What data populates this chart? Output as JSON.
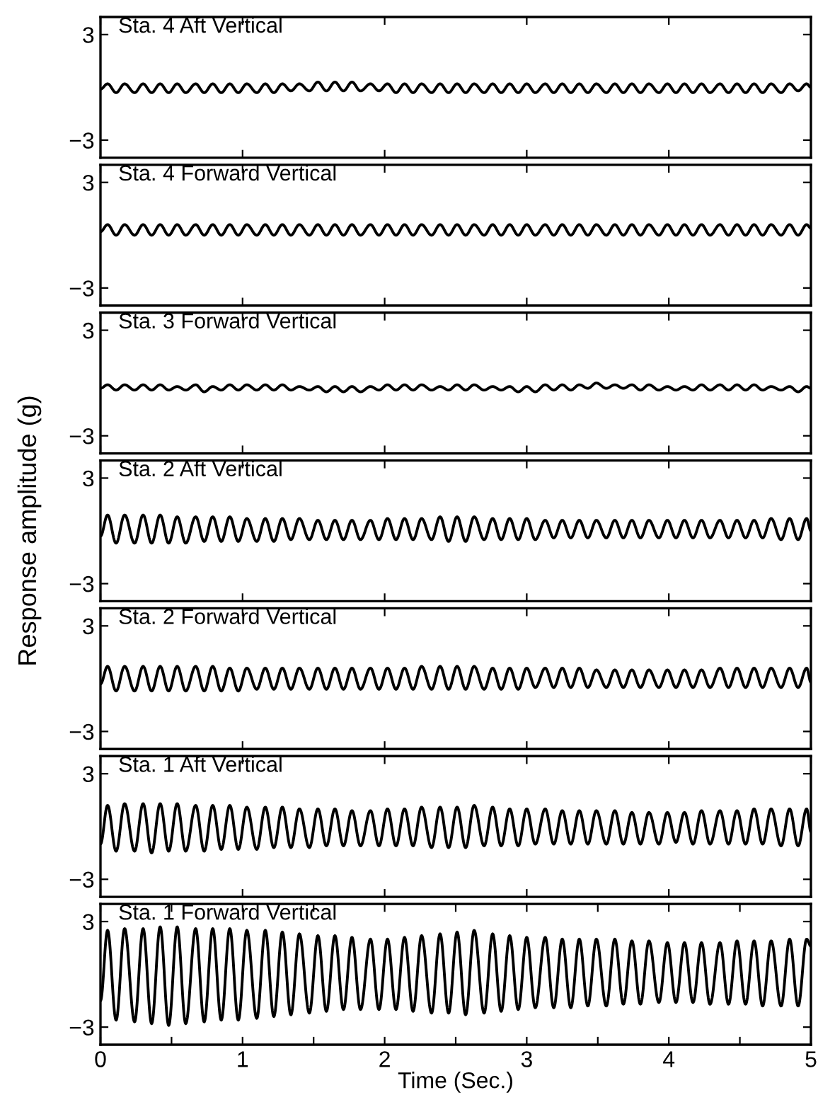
{
  "chart_data": [
    {
      "type": "line",
      "title": "Sta. 4 Aft Vertical",
      "xlim": [
        0,
        5
      ],
      "ylim": [
        -4,
        4
      ],
      "xticks": [
        0,
        1,
        2,
        3,
        4,
        5
      ],
      "yticks": [
        3,
        -3
      ],
      "tick_labels": "y",
      "x": [
        0,
        0.05,
        0.11,
        0.17,
        0.24,
        0.3,
        0.36,
        0.42,
        0.48,
        0.54,
        0.6,
        0.67,
        0.73,
        0.79,
        0.85,
        0.91,
        0.97,
        1.03,
        1.1,
        1.16,
        1.22,
        1.28,
        1.34,
        1.4,
        1.47,
        1.53,
        1.59,
        1.65,
        1.71,
        1.77,
        1.83,
        1.9,
        1.96,
        2.02,
        2.08,
        2.14,
        2.2,
        2.26,
        2.33,
        2.39,
        2.45,
        2.51,
        2.57,
        2.63,
        2.7,
        2.76,
        2.82,
        2.88,
        2.94,
        3.0,
        3.06,
        3.13,
        3.19,
        3.25,
        3.31,
        3.37,
        3.43,
        3.49,
        3.56,
        3.62,
        3.68,
        3.74,
        3.8,
        3.86,
        3.93,
        3.99,
        4.05,
        4.11,
        4.17,
        4.23,
        4.29,
        4.36,
        4.42,
        4.48,
        4.54,
        4.6,
        4.66,
        4.72,
        4.79,
        4.85,
        4.91,
        4.97,
        5
      ],
      "series": [
        {
          "color": "#000000",
          "values": [
            -0.1,
            0.2,
            -0.3,
            0.2,
            -0.3,
            0.2,
            -0.3,
            0.2,
            -0.3,
            0.2,
            -0.3,
            0.2,
            -0.3,
            0.2,
            -0.3,
            0.2,
            -0.3,
            0.2,
            -0.3,
            0.2,
            -0.3,
            0.2,
            -0.2,
            0.2,
            -0.2,
            0.3,
            -0.2,
            0.3,
            -0.2,
            0.3,
            -0.2,
            0.2,
            -0.2,
            0.2,
            -0.3,
            0.2,
            -0.3,
            0.2,
            -0.3,
            0.2,
            -0.3,
            0.2,
            -0.3,
            0.2,
            -0.3,
            0.2,
            -0.3,
            0.2,
            -0.3,
            0.2,
            -0.3,
            0.2,
            -0.3,
            0.2,
            -0.3,
            0.2,
            -0.3,
            0.2,
            -0.3,
            0.2,
            -0.3,
            0.2,
            -0.3,
            0.2,
            -0.3,
            0.2,
            -0.3,
            0.2,
            -0.3,
            0.2,
            -0.3,
            0.2,
            -0.3,
            0.2,
            -0.3,
            0.2,
            -0.3,
            0.2,
            -0.3,
            0.2,
            -0.2,
            0.2,
            0.0
          ]
        }
      ]
    },
    {
      "type": "line",
      "title": "Sta. 4 Forward Vertical",
      "xlim": [
        0,
        5
      ],
      "ylim": [
        -4,
        4
      ],
      "xticks": [
        0,
        1,
        2,
        3,
        4,
        5
      ],
      "yticks": [
        3,
        -3
      ],
      "tick_labels": "y",
      "x": [
        0,
        0.05,
        0.11,
        0.17,
        0.24,
        0.3,
        0.36,
        0.42,
        0.48,
        0.54,
        0.6,
        0.67,
        0.73,
        0.79,
        0.85,
        0.91,
        0.97,
        1.03,
        1.1,
        1.16,
        1.22,
        1.28,
        1.34,
        1.4,
        1.47,
        1.53,
        1.59,
        1.65,
        1.71,
        1.77,
        1.83,
        1.9,
        1.96,
        2.02,
        2.08,
        2.14,
        2.2,
        2.26,
        2.33,
        2.39,
        2.45,
        2.51,
        2.57,
        2.63,
        2.7,
        2.76,
        2.82,
        2.88,
        2.94,
        3.0,
        3.06,
        3.13,
        3.19,
        3.25,
        3.31,
        3.37,
        3.43,
        3.49,
        3.56,
        3.62,
        3.68,
        3.74,
        3.8,
        3.86,
        3.93,
        3.99,
        4.05,
        4.11,
        4.17,
        4.23,
        4.29,
        4.36,
        4.42,
        4.48,
        4.54,
        4.6,
        4.66,
        4.72,
        4.79,
        4.85,
        4.91,
        4.97,
        5
      ],
      "series": [
        {
          "color": "#000000",
          "values": [
            0.2,
            0.6,
            0.0,
            0.6,
            0.0,
            0.6,
            0.0,
            0.6,
            0.0,
            0.6,
            0.0,
            0.6,
            0.0,
            0.6,
            0.0,
            0.6,
            0.0,
            0.6,
            0.0,
            0.6,
            0.0,
            0.6,
            0.0,
            0.6,
            0.0,
            0.6,
            0.0,
            0.6,
            0.0,
            0.6,
            0.0,
            0.6,
            0.0,
            0.6,
            0.0,
            0.6,
            0.0,
            0.6,
            0.0,
            0.6,
            0.0,
            0.6,
            0.0,
            0.6,
            0.0,
            0.6,
            0.0,
            0.6,
            0.0,
            0.6,
            0.0,
            0.6,
            0.0,
            0.6,
            0.0,
            0.6,
            0.0,
            0.6,
            0.0,
            0.6,
            0.0,
            0.6,
            0.0,
            0.6,
            0.0,
            0.6,
            0.0,
            0.6,
            0.0,
            0.6,
            0.0,
            0.6,
            0.0,
            0.6,
            0.0,
            0.6,
            0.0,
            0.6,
            0.0,
            0.6,
            0.0,
            0.6,
            0.4
          ]
        }
      ]
    },
    {
      "type": "line",
      "title": "Sta. 3 Forward Vertical",
      "xlim": [
        0,
        5
      ],
      "ylim": [
        -4,
        4
      ],
      "xticks": [
        0,
        1,
        2,
        3,
        4,
        5
      ],
      "yticks": [
        3,
        -3
      ],
      "tick_labels": "y",
      "x": [
        0,
        0.05,
        0.11,
        0.17,
        0.24,
        0.3,
        0.36,
        0.42,
        0.48,
        0.54,
        0.6,
        0.67,
        0.73,
        0.79,
        0.85,
        0.91,
        0.97,
        1.03,
        1.1,
        1.16,
        1.22,
        1.28,
        1.34,
        1.4,
        1.47,
        1.53,
        1.59,
        1.65,
        1.71,
        1.77,
        1.83,
        1.9,
        1.96,
        2.02,
        2.08,
        2.14,
        2.2,
        2.26,
        2.33,
        2.39,
        2.45,
        2.51,
        2.57,
        2.63,
        2.7,
        2.76,
        2.82,
        2.88,
        2.94,
        3.0,
        3.06,
        3.13,
        3.19,
        3.25,
        3.31,
        3.37,
        3.43,
        3.49,
        3.56,
        3.62,
        3.68,
        3.74,
        3.8,
        3.86,
        3.93,
        3.99,
        4.05,
        4.11,
        4.17,
        4.23,
        4.29,
        4.36,
        4.42,
        4.48,
        4.54,
        4.6,
        4.66,
        4.72,
        4.79,
        4.85,
        4.91,
        4.97,
        5
      ],
      "series": [
        {
          "color": "#000000",
          "values": [
            -0.3,
            -0.1,
            -0.4,
            -0.1,
            -0.4,
            -0.1,
            -0.4,
            -0.1,
            -0.4,
            -0.2,
            -0.4,
            -0.1,
            -0.5,
            -0.2,
            -0.4,
            -0.1,
            -0.4,
            -0.1,
            -0.4,
            -0.1,
            -0.4,
            -0.1,
            -0.4,
            -0.2,
            -0.4,
            -0.2,
            -0.5,
            -0.2,
            -0.5,
            -0.2,
            -0.5,
            -0.2,
            -0.4,
            -0.1,
            -0.4,
            -0.1,
            -0.4,
            -0.1,
            -0.4,
            -0.2,
            -0.4,
            -0.1,
            -0.4,
            -0.1,
            -0.4,
            -0.2,
            -0.4,
            -0.2,
            -0.5,
            -0.2,
            -0.5,
            -0.1,
            -0.4,
            -0.1,
            -0.4,
            -0.1,
            -0.3,
            0.0,
            -0.3,
            -0.1,
            -0.3,
            -0.1,
            -0.4,
            -0.1,
            -0.4,
            -0.2,
            -0.4,
            -0.2,
            -0.4,
            -0.1,
            -0.4,
            -0.1,
            -0.4,
            -0.1,
            -0.4,
            -0.1,
            -0.4,
            -0.2,
            -0.4,
            -0.2,
            -0.5,
            -0.2,
            -0.3
          ]
        }
      ]
    },
    {
      "type": "line",
      "title": "Sta. 2 Aft Vertical",
      "ylabel": "Response amplitude (g)",
      "xlim": [
        0,
        5
      ],
      "ylim": [
        -4,
        4
      ],
      "xticks": [
        0,
        1,
        2,
        3,
        4,
        5
      ],
      "yticks": [
        3,
        -3
      ],
      "tick_labels": "y",
      "x": [
        0,
        0.05,
        0.11,
        0.17,
        0.24,
        0.3,
        0.36,
        0.42,
        0.48,
        0.54,
        0.6,
        0.67,
        0.73,
        0.79,
        0.85,
        0.91,
        0.97,
        1.03,
        1.1,
        1.16,
        1.22,
        1.28,
        1.34,
        1.4,
        1.47,
        1.53,
        1.59,
        1.65,
        1.71,
        1.77,
        1.83,
        1.9,
        1.96,
        2.02,
        2.08,
        2.14,
        2.2,
        2.26,
        2.33,
        2.39,
        2.45,
        2.51,
        2.57,
        2.63,
        2.7,
        2.76,
        2.82,
        2.88,
        2.94,
        3.0,
        3.06,
        3.13,
        3.19,
        3.25,
        3.31,
        3.37,
        3.43,
        3.49,
        3.56,
        3.62,
        3.68,
        3.74,
        3.8,
        3.86,
        3.93,
        3.99,
        4.05,
        4.11,
        4.17,
        4.23,
        4.29,
        4.36,
        4.42,
        4.48,
        4.54,
        4.6,
        4.66,
        4.72,
        4.79,
        4.85,
        4.91,
        4.97,
        5
      ],
      "series": [
        {
          "color": "#000000",
          "values": [
            -0.3,
            0.9,
            -0.7,
            0.9,
            -0.7,
            0.9,
            -0.7,
            0.9,
            -0.7,
            0.8,
            -0.7,
            0.8,
            -0.6,
            0.8,
            -0.6,
            0.8,
            -0.6,
            0.7,
            -0.6,
            0.7,
            -0.6,
            0.7,
            -0.5,
            0.7,
            -0.5,
            0.6,
            -0.5,
            0.6,
            -0.5,
            0.6,
            -0.5,
            0.6,
            -0.5,
            0.7,
            -0.5,
            0.7,
            -0.5,
            0.7,
            -0.5,
            0.8,
            -0.6,
            0.8,
            -0.6,
            0.8,
            -0.5,
            0.7,
            -0.5,
            0.7,
            -0.5,
            0.7,
            -0.5,
            0.6,
            -0.4,
            0.6,
            -0.4,
            0.6,
            -0.4,
            0.6,
            -0.4,
            0.6,
            -0.4,
            0.6,
            -0.4,
            0.6,
            -0.4,
            0.6,
            -0.4,
            0.6,
            -0.4,
            0.6,
            -0.4,
            0.6,
            -0.4,
            0.6,
            -0.4,
            0.6,
            -0.4,
            0.7,
            -0.5,
            0.7,
            -0.5,
            0.7,
            0.0
          ]
        }
      ]
    },
    {
      "type": "line",
      "title": "Sta. 2 Forward Vertical",
      "xlim": [
        0,
        5
      ],
      "ylim": [
        -4,
        4
      ],
      "xticks": [
        0,
        1,
        2,
        3,
        4,
        5
      ],
      "yticks": [
        3,
        -3
      ],
      "tick_labels": "y",
      "x": [
        0,
        0.05,
        0.11,
        0.17,
        0.24,
        0.3,
        0.36,
        0.42,
        0.48,
        0.54,
        0.6,
        0.67,
        0.73,
        0.79,
        0.85,
        0.91,
        0.97,
        1.03,
        1.1,
        1.16,
        1.22,
        1.28,
        1.34,
        1.4,
        1.47,
        1.53,
        1.59,
        1.65,
        1.71,
        1.77,
        1.83,
        1.9,
        1.96,
        2.02,
        2.08,
        2.14,
        2.2,
        2.26,
        2.33,
        2.39,
        2.45,
        2.51,
        2.57,
        2.63,
        2.7,
        2.76,
        2.82,
        2.88,
        2.94,
        3.0,
        3.06,
        3.13,
        3.19,
        3.25,
        3.31,
        3.37,
        3.43,
        3.49,
        3.56,
        3.62,
        3.68,
        3.74,
        3.8,
        3.86,
        3.93,
        3.99,
        4.05,
        4.11,
        4.17,
        4.23,
        4.29,
        4.36,
        4.42,
        4.48,
        4.54,
        4.6,
        4.66,
        4.72,
        4.79,
        4.85,
        4.91,
        4.97,
        5
      ],
      "series": [
        {
          "color": "#000000",
          "values": [
            -0.3,
            0.7,
            -0.7,
            0.7,
            -0.7,
            0.7,
            -0.7,
            0.7,
            -0.7,
            0.7,
            -0.7,
            0.7,
            -0.7,
            0.7,
            -0.7,
            0.6,
            -0.7,
            0.6,
            -0.6,
            0.6,
            -0.6,
            0.6,
            -0.6,
            0.6,
            -0.6,
            0.6,
            -0.6,
            0.6,
            -0.6,
            0.6,
            -0.6,
            0.6,
            -0.6,
            0.6,
            -0.6,
            0.6,
            -0.6,
            0.7,
            -0.6,
            0.7,
            -0.6,
            0.7,
            -0.6,
            0.7,
            -0.6,
            0.6,
            -0.6,
            0.6,
            -0.6,
            0.6,
            -0.5,
            0.6,
            -0.5,
            0.6,
            -0.5,
            0.6,
            -0.5,
            0.5,
            -0.5,
            0.5,
            -0.5,
            0.5,
            -0.5,
            0.5,
            -0.5,
            0.5,
            -0.5,
            0.5,
            -0.5,
            0.5,
            -0.5,
            0.6,
            -0.5,
            0.6,
            -0.5,
            0.6,
            -0.5,
            0.6,
            -0.5,
            0.6,
            -0.5,
            0.6,
            -0.2
          ]
        }
      ]
    },
    {
      "type": "line",
      "title": "Sta. 1 Aft Vertical",
      "xlim": [
        0,
        5
      ],
      "ylim": [
        -4,
        4
      ],
      "xticks": [
        0,
        1,
        2,
        3,
        4,
        5
      ],
      "yticks": [
        3,
        -3
      ],
      "tick_labels": "y",
      "x": [
        0,
        0.05,
        0.11,
        0.17,
        0.24,
        0.3,
        0.36,
        0.42,
        0.48,
        0.54,
        0.6,
        0.67,
        0.73,
        0.79,
        0.85,
        0.91,
        0.97,
        1.03,
        1.1,
        1.16,
        1.22,
        1.28,
        1.34,
        1.4,
        1.47,
        1.53,
        1.59,
        1.65,
        1.71,
        1.77,
        1.83,
        1.9,
        1.96,
        2.02,
        2.08,
        2.14,
        2.2,
        2.26,
        2.33,
        2.39,
        2.45,
        2.51,
        2.57,
        2.63,
        2.7,
        2.76,
        2.82,
        2.88,
        2.94,
        3.0,
        3.06,
        3.13,
        3.19,
        3.25,
        3.31,
        3.37,
        3.43,
        3.49,
        3.56,
        3.62,
        3.68,
        3.74,
        3.8,
        3.86,
        3.93,
        3.99,
        4.05,
        4.11,
        4.17,
        4.23,
        4.29,
        4.36,
        4.42,
        4.48,
        4.54,
        4.6,
        4.66,
        4.72,
        4.79,
        4.85,
        4.91,
        4.97,
        5
      ],
      "series": [
        {
          "color": "#000000",
          "values": [
            -1.0,
            1.2,
            -1.4,
            1.3,
            -1.4,
            1.3,
            -1.5,
            1.3,
            -1.4,
            1.3,
            -1.4,
            1.2,
            -1.4,
            1.2,
            -1.3,
            1.2,
            -1.3,
            1.1,
            -1.3,
            1.1,
            -1.2,
            1.1,
            -1.2,
            1.0,
            -1.2,
            1.0,
            -1.1,
            1.0,
            -1.1,
            0.9,
            -1.1,
            0.9,
            -1.1,
            1.0,
            -1.1,
            1.0,
            -1.1,
            1.1,
            -1.2,
            1.1,
            -1.2,
            1.1,
            -1.2,
            1.2,
            -1.1,
            1.1,
            -1.1,
            1.0,
            -1.1,
            1.0,
            -1.0,
            1.0,
            -1.0,
            0.9,
            -1.0,
            0.9,
            -1.0,
            0.9,
            -1.0,
            0.9,
            -1.0,
            0.8,
            -1.0,
            0.8,
            -1.0,
            0.8,
            -0.9,
            0.8,
            -1.0,
            0.9,
            -1.0,
            0.9,
            -1.0,
            0.9,
            -1.0,
            1.0,
            -1.0,
            1.0,
            -1.1,
            1.0,
            -1.1,
            1.0,
            -0.3
          ]
        }
      ]
    },
    {
      "type": "line",
      "title": "Sta. 1 Forward Vertical",
      "xlabel": "Time (Sec.)",
      "xlim": [
        0,
        5
      ],
      "ylim": [
        -4,
        4
      ],
      "xticks": [
        0,
        {
          "value": 0.5,
          "label": null
        },
        1,
        {
          "value": 1.5,
          "label": null
        },
        2,
        {
          "value": 2.5,
          "label": null
        },
        3,
        {
          "value": 3.5,
          "label": null
        },
        4,
        {
          "value": 4.5,
          "label": null
        },
        5
      ],
      "yticks": [
        3,
        -3
      ],
      "x": [
        0,
        0.05,
        0.11,
        0.17,
        0.24,
        0.3,
        0.36,
        0.42,
        0.48,
        0.54,
        0.6,
        0.67,
        0.73,
        0.79,
        0.85,
        0.91,
        0.97,
        1.03,
        1.1,
        1.16,
        1.22,
        1.28,
        1.34,
        1.4,
        1.47,
        1.53,
        1.59,
        1.65,
        1.71,
        1.77,
        1.83,
        1.9,
        1.96,
        2.02,
        2.08,
        2.14,
        2.2,
        2.26,
        2.33,
        2.39,
        2.45,
        2.51,
        2.57,
        2.63,
        2.7,
        2.76,
        2.82,
        2.88,
        2.94,
        3.0,
        3.06,
        3.13,
        3.19,
        3.25,
        3.31,
        3.37,
        3.43,
        3.49,
        3.56,
        3.62,
        3.68,
        3.74,
        3.8,
        3.86,
        3.93,
        3.99,
        4.05,
        4.11,
        4.17,
        4.23,
        4.29,
        4.36,
        4.42,
        4.48,
        4.54,
        4.6,
        4.66,
        4.72,
        4.79,
        4.85,
        4.91,
        4.97,
        5
      ],
      "series": [
        {
          "color": "#000000",
          "values": [
            -1.5,
            2.5,
            -2.6,
            2.6,
            -2.7,
            2.6,
            -2.8,
            2.7,
            -2.9,
            2.7,
            -2.8,
            2.6,
            -2.7,
            2.6,
            -2.6,
            2.6,
            -2.6,
            2.5,
            -2.5,
            2.5,
            -2.4,
            2.4,
            -2.3,
            2.3,
            -2.2,
            2.2,
            -2.1,
            2.2,
            -2.0,
            2.1,
            -2.0,
            2.0,
            -2.0,
            2.0,
            -2.0,
            2.1,
            -2.1,
            2.2,
            -2.2,
            2.3,
            -2.2,
            2.4,
            -2.3,
            2.5,
            -2.2,
            2.3,
            -2.1,
            2.2,
            -2.0,
            2.1,
            -1.9,
            2.1,
            -1.9,
            2.0,
            -1.9,
            2.0,
            -1.8,
            2.0,
            -1.8,
            2.0,
            -1.7,
            1.9,
            -1.7,
            1.9,
            -1.6,
            1.8,
            -1.6,
            1.8,
            -1.6,
            1.8,
            -1.7,
            1.8,
            -1.7,
            1.9,
            -1.7,
            1.9,
            -1.8,
            1.9,
            -1.8,
            2.0,
            -1.8,
            2.0,
            1.6
          ]
        }
      ]
    }
  ]
}
